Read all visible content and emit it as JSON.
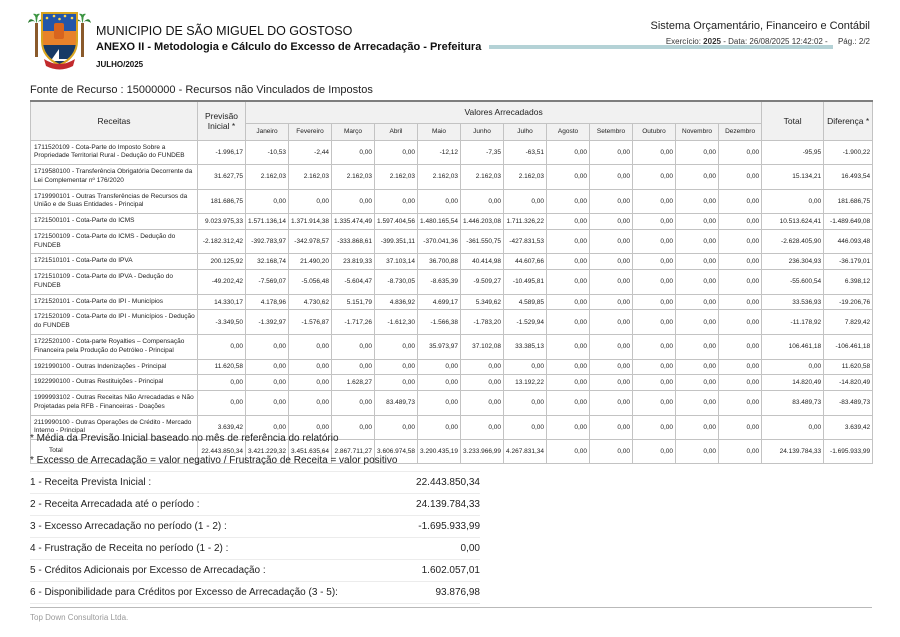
{
  "header": {
    "municipality": "MUNICIPIO DE SÃO MIGUEL DO GOSTOSO",
    "report_title": "ANEXO II - Metodologia e Cálculo do Excesso de Arrecadação - Prefeitura",
    "period": "JULHO/2025",
    "system_name": "Sistema Orçamentário, Financeiro e Contábil",
    "meta": {
      "exercicio_label": "Exercício:",
      "exercicio_value": "2025",
      "tail": "- Data: 26/08/2025 12:42:02 -",
      "pagina": "Pág.: 2/2"
    }
  },
  "fonte_recurso": "Fonte de Recurso : 15000000 -  Recursos não Vinculados de Impostos",
  "table": {
    "col_receitas": "Receitas",
    "col_previsao": "Previsão Inicial *",
    "col_valores": "Valores Arrecadados",
    "months": [
      "Janeiro",
      "Fevereiro",
      "Março",
      "Abril",
      "Maio",
      "Junho",
      "Julho",
      "Agosto",
      "Setembro",
      "Outubro",
      "Novembro",
      "Dezembro"
    ],
    "col_total": "Total",
    "col_diferenca": "Diferença *",
    "rows": [
      {
        "label": "1711520109 - Cota-Parte do Imposto Sobre a Propriedade Territorial Rural - Dedução do FUNDEB",
        "values": [
          "-1.996,17",
          "-10,53",
          "-2,44",
          "0,00",
          "0,00",
          "-12,12",
          "-7,35",
          "-63,51",
          "0,00",
          "0,00",
          "0,00",
          "0,00",
          "0,00",
          "-95,95",
          "-1.900,22"
        ]
      },
      {
        "label": "1719580100 - Transferência Obrigatória Decorrente da Lei Complementar nº 176/2020",
        "values": [
          "31.627,75",
          "2.162,03",
          "2.162,03",
          "2.162,03",
          "2.162,03",
          "2.162,03",
          "2.162,03",
          "2.162,03",
          "0,00",
          "0,00",
          "0,00",
          "0,00",
          "0,00",
          "15.134,21",
          "16.493,54"
        ]
      },
      {
        "label": "1719990101 - Outras Transferências de Recursos da União e de Suas Entidades - Principal",
        "values": [
          "181.686,75",
          "0,00",
          "0,00",
          "0,00",
          "0,00",
          "0,00",
          "0,00",
          "0,00",
          "0,00",
          "0,00",
          "0,00",
          "0,00",
          "0,00",
          "0,00",
          "181.686,75"
        ]
      },
      {
        "label": "1721500101 - Cota-Parte do ICMS",
        "values": [
          "9.023.975,33",
          "1.571.136,14",
          "1.371.914,38",
          "1.335.474,49",
          "1.597.404,56",
          "1.480.165,54",
          "1.446.203,08",
          "1.711.326,22",
          "0,00",
          "0,00",
          "0,00",
          "0,00",
          "0,00",
          "10.513.624,41",
          "-1.489.649,08"
        ]
      },
      {
        "label": "1721500109 - Cota-Parte do ICMS - Dedução do FUNDEB",
        "values": [
          "-2.182.312,42",
          "-392.783,97",
          "-342.978,57",
          "-333.868,61",
          "-399.351,11",
          "-370.041,36",
          "-361.550,75",
          "-427.831,53",
          "0,00",
          "0,00",
          "0,00",
          "0,00",
          "0,00",
          "-2.628.405,90",
          "446.093,48"
        ]
      },
      {
        "label": "1721510101 - Cota-Parte do IPVA",
        "values": [
          "200.125,92",
          "32.168,74",
          "21.490,20",
          "23.819,33",
          "37.103,14",
          "36.700,88",
          "40.414,98",
          "44.607,66",
          "0,00",
          "0,00",
          "0,00",
          "0,00",
          "0,00",
          "236.304,93",
          "-36.179,01"
        ]
      },
      {
        "label": "1721510109 - Cota-Parte do IPVA - Dedução do FUNDEB",
        "values": [
          "-49.202,42",
          "-7.569,07",
          "-5.056,48",
          "-5.604,47",
          "-8.730,05",
          "-8.635,39",
          "-9.509,27",
          "-10.495,81",
          "0,00",
          "0,00",
          "0,00",
          "0,00",
          "0,00",
          "-55.600,54",
          "6.398,12"
        ]
      },
      {
        "label": "1721520101 - Cota-Parte do IPI - Municípios",
        "values": [
          "14.330,17",
          "4.178,96",
          "4.730,62",
          "5.151,79",
          "4.836,92",
          "4.699,17",
          "5.349,62",
          "4.589,85",
          "0,00",
          "0,00",
          "0,00",
          "0,00",
          "0,00",
          "33.536,93",
          "-19.206,76"
        ]
      },
      {
        "label": "1721520109 - Cota-Parte do IPI - Municípios - Dedução do FUNDEB",
        "values": [
          "-3.349,50",
          "-1.392,97",
          "-1.576,87",
          "-1.717,26",
          "-1.612,30",
          "-1.566,38",
          "-1.783,20",
          "-1.529,94",
          "0,00",
          "0,00",
          "0,00",
          "0,00",
          "0,00",
          "-11.178,92",
          "7.829,42"
        ]
      },
      {
        "label": "1722520100 - Cota-parte Royalties – Compensação Financeira pela Produção do Petróleo - Principal",
        "values": [
          "0,00",
          "0,00",
          "0,00",
          "0,00",
          "0,00",
          "35.973,97",
          "37.102,08",
          "33.385,13",
          "0,00",
          "0,00",
          "0,00",
          "0,00",
          "0,00",
          "106.461,18",
          "-106.461,18"
        ]
      },
      {
        "label": "1921990100 - Outras Indenizações - Principal",
        "values": [
          "11.620,58",
          "0,00",
          "0,00",
          "0,00",
          "0,00",
          "0,00",
          "0,00",
          "0,00",
          "0,00",
          "0,00",
          "0,00",
          "0,00",
          "0,00",
          "0,00",
          "11.620,58"
        ]
      },
      {
        "label": "1922990100 - Outras Restituições - Principal",
        "values": [
          "0,00",
          "0,00",
          "0,00",
          "1.628,27",
          "0,00",
          "0,00",
          "0,00",
          "13.192,22",
          "0,00",
          "0,00",
          "0,00",
          "0,00",
          "0,00",
          "14.820,49",
          "-14.820,49"
        ]
      },
      {
        "label": "1999993102 - Outras Receitas Não Arrecadadas e Não Projetadas pela RFB - Financeiras - Doações",
        "values": [
          "0,00",
          "0,00",
          "0,00",
          "0,00",
          "83.489,73",
          "0,00",
          "0,00",
          "0,00",
          "0,00",
          "0,00",
          "0,00",
          "0,00",
          "0,00",
          "83.489,73",
          "-83.489,73"
        ]
      },
      {
        "label": "2119990100 - Outras Operações de Crédito - Mercado Interno - Principal",
        "values": [
          "3.639,42",
          "0,00",
          "0,00",
          "0,00",
          "0,00",
          "0,00",
          "0,00",
          "0,00",
          "0,00",
          "0,00",
          "0,00",
          "0,00",
          "0,00",
          "0,00",
          "3.639,42"
        ]
      }
    ],
    "total_row": {
      "label": "Total",
      "values": [
        "22.443.850,34",
        "3.421.229,32",
        "3.451.635,64",
        "2.867.711,27",
        "3.606.974,58",
        "3.290.435,19",
        "3.233.966,99",
        "4.267.831,34",
        "0,00",
        "0,00",
        "0,00",
        "0,00",
        "0,00",
        "24.139.784,33",
        "-1.695.933,99"
      ]
    }
  },
  "notes": [
    "* Média da Previsão Inicial baseado no mês de referência do relatório",
    "* Excesso de Arrecadação = valor negativo / Frustração de Receita = valor positivo"
  ],
  "summary": [
    {
      "label": "1 - Receita Prevista Inicial :",
      "value": "22.443.850,34"
    },
    {
      "label": "2 - Receita Arrecadada até o período :",
      "value": "24.139.784,33"
    },
    {
      "label": "3 - Excesso Arrecadação no período (1 - 2) :",
      "value": "-1.695.933,99"
    },
    {
      "label": "4 - Frustração de Receita no período (1 - 2) :",
      "value": "0,00"
    },
    {
      "label": "5 - Créditos Adicionais por Excesso de Arrecadação :",
      "value": "1.602.057,01"
    },
    {
      "label": "6 - Disponibilidade para Créditos por Excesso de Arrecadação (3 - 5):",
      "value": "93.876,98"
    }
  ],
  "footer": "Top Down Consultoria Ltda.",
  "colors": {
    "teal_rule": "#b4d2d6",
    "table_header_bg": "#f1f1f1",
    "border": "#c3c3c3"
  }
}
